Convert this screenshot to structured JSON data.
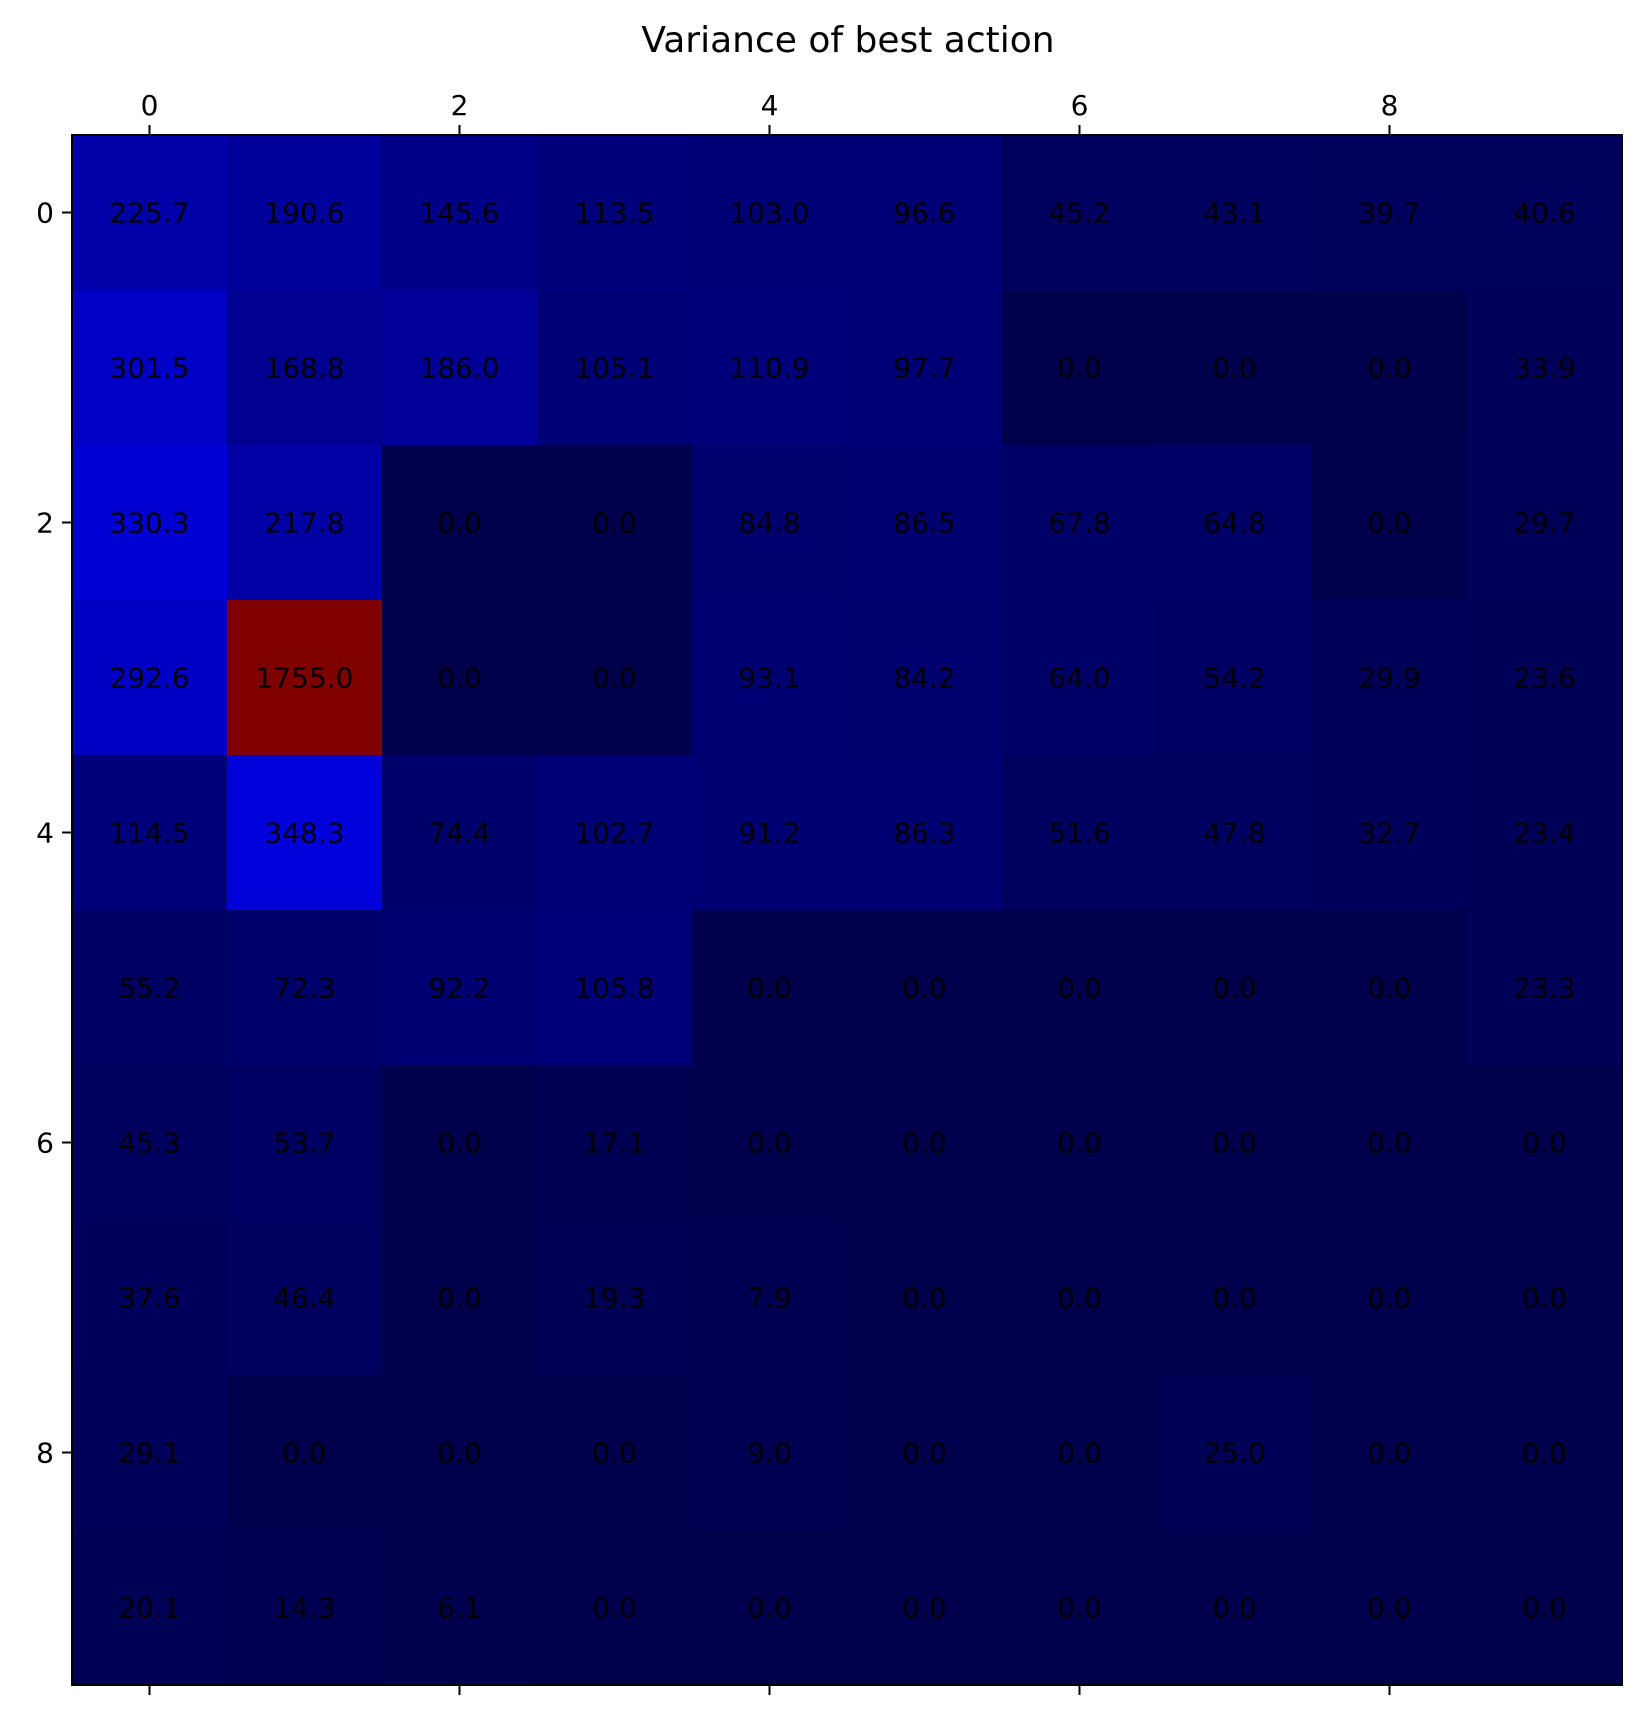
{
  "chart_data": {
    "type": "heatmap",
    "title": "Variance of best action",
    "rows": 10,
    "cols": 10,
    "x_ticks": [
      0,
      2,
      4,
      6,
      8
    ],
    "y_ticks": [
      0,
      2,
      4,
      6,
      8
    ],
    "x_tick_position": "top-and-bottom",
    "colormap": "seismic",
    "vmin": 0,
    "vmax": 1755.0,
    "values": [
      [
        225.7,
        190.6,
        145.6,
        113.5,
        103.0,
        96.6,
        45.2,
        43.1,
        39.7,
        40.6
      ],
      [
        301.5,
        168.8,
        186.0,
        105.1,
        110.9,
        97.7,
        0.0,
        0.0,
        0.0,
        33.9
      ],
      [
        330.3,
        217.8,
        0.0,
        0.0,
        84.8,
        86.5,
        67.8,
        64.8,
        0.0,
        29.7
      ],
      [
        292.6,
        1755.0,
        0.0,
        0.0,
        93.1,
        84.2,
        64.0,
        54.2,
        29.9,
        23.6
      ],
      [
        114.5,
        348.3,
        74.4,
        102.7,
        91.2,
        86.3,
        51.6,
        47.8,
        32.7,
        23.4
      ],
      [
        55.2,
        72.3,
        92.2,
        105.8,
        0.0,
        0.0,
        0.0,
        0.0,
        0.0,
        23.3
      ],
      [
        45.3,
        53.7,
        0.0,
        17.1,
        0.0,
        0.0,
        0.0,
        0.0,
        0.0,
        0.0
      ],
      [
        37.6,
        46.4,
        0.0,
        19.3,
        7.9,
        0.0,
        0.0,
        0.0,
        0.0,
        0.0
      ],
      [
        29.1,
        0.0,
        0.0,
        0.0,
        9.0,
        0.0,
        0.0,
        25.0,
        0.0,
        0.0
      ],
      [
        20.1,
        14.3,
        6.1,
        0.0,
        0.0,
        0.0,
        0.0,
        0.0,
        0.0,
        0.0
      ]
    ]
  }
}
